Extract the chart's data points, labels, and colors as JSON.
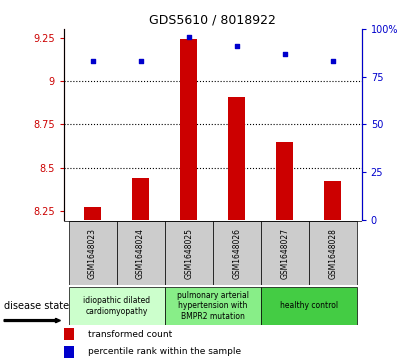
{
  "title": "GDS5610 / 8018922",
  "samples": [
    "GSM1648023",
    "GSM1648024",
    "GSM1648025",
    "GSM1648026",
    "GSM1648027",
    "GSM1648028"
  ],
  "bar_values": [
    8.27,
    8.44,
    9.24,
    8.91,
    8.65,
    8.42
  ],
  "dot_values": [
    83,
    83,
    96,
    91,
    87,
    83
  ],
  "bar_color": "#cc0000",
  "dot_color": "#0000cc",
  "ylim_left": [
    8.2,
    9.3
  ],
  "ylim_right": [
    0,
    100
  ],
  "yticks_left": [
    8.25,
    8.5,
    8.75,
    9.0,
    9.25
  ],
  "yticks_right": [
    0,
    25,
    50,
    75,
    100
  ],
  "ytick_labels_left": [
    "8.25",
    "8.5",
    "8.75",
    "9",
    "9.25"
  ],
  "ytick_labels_right": [
    "0",
    "25",
    "50",
    "75",
    "100%"
  ],
  "grid_lines": [
    8.5,
    8.75,
    9.0
  ],
  "disease_groups": [
    {
      "label": "idiopathic dilated\ncardiomyopathy",
      "color": "#ccffcc",
      "start": 0,
      "end": 2
    },
    {
      "label": "pulmonary arterial\nhypertension with\nBMPR2 mutation",
      "color": "#88ee88",
      "start": 2,
      "end": 4
    },
    {
      "label": "healthy control",
      "color": "#44cc44",
      "start": 4,
      "end": 6
    }
  ],
  "legend_bar_label": "transformed count",
  "legend_dot_label": "percentile rank within the sample",
  "disease_state_label": "disease state",
  "bar_bottom": 8.2,
  "sample_box_color": "#cccccc",
  "plot_bg_color": "#ffffff",
  "fig_bg_color": "#ffffff",
  "bar_width": 0.35
}
